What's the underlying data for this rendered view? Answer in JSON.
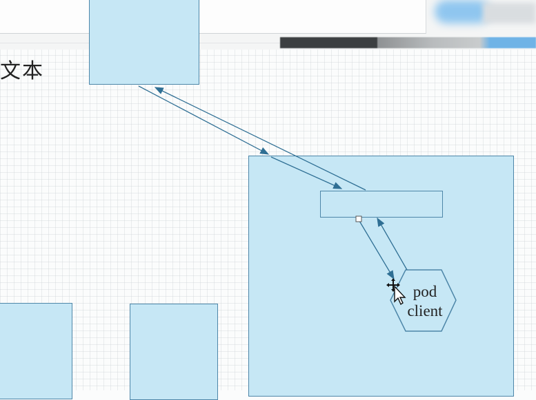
{
  "canvas": {
    "label_text": "文本"
  },
  "diagram": {
    "nodes": [
      {
        "id": "top-box"
      },
      {
        "id": "large-container"
      },
      {
        "id": "inner-bar"
      },
      {
        "id": "bottom-left-box"
      },
      {
        "id": "bottom-middle-box"
      },
      {
        "id": "pod-hexagon",
        "label_line1": "pod",
        "label_line2": "client"
      }
    ],
    "edges": [
      {
        "from": "top-box",
        "to": "large-container"
      },
      {
        "from": "inner-bar",
        "to": "top-box"
      },
      {
        "from": "inner-bar",
        "to": "pod-hexagon"
      },
      {
        "from": "pod-hexagon",
        "to": "inner-bar"
      }
    ]
  },
  "colors": {
    "shape_fill": "#c6e7f5",
    "shape_stroke": "#4d86a8",
    "edge": "#2f6f94"
  }
}
